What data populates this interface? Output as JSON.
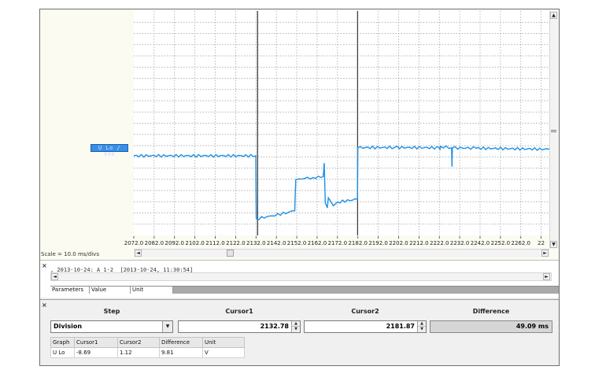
{
  "chart": {
    "channel_tag": "U Lo / ###",
    "scale_label": "Scale = 10.0 ms/divs",
    "trace_color": "#1e90e6",
    "cursor_line_color": "#404040",
    "x_ticks": [
      "2072.0",
      "2082.0",
      "2092.0",
      "2102.0",
      "2112.0",
      "2122.0",
      "2132.0",
      "2142.0",
      "2152.0",
      "2162.0",
      "2172.0",
      "2182.0",
      "2192.0",
      "2202.0",
      "2212.0",
      "2222.0",
      "2232.0",
      "2242.0",
      "2252.0",
      "2262.0",
      "22"
    ],
    "x_range": [
      2072.0,
      2276.0
    ],
    "cursor1_x": 2132.78,
    "cursor2_x": 2181.87,
    "trace": {
      "x": [
        2072,
        2131.9,
        2132.1,
        2140,
        2148,
        2151,
        2151.5,
        2153,
        2160,
        2165,
        2165.5,
        2166,
        2167,
        2167.5,
        2170,
        2172,
        2181.8,
        2182.0,
        2200,
        2222,
        2222.3,
        2222.6,
        2228,
        2228.2,
        2228.4,
        2240,
        2276
      ],
      "y": [
        0.0,
        0.0,
        -8.7,
        -8.3,
        -7.8,
        -7.6,
        -3.3,
        -3.2,
        -3.0,
        -2.9,
        -1.0,
        -6.5,
        -7.2,
        -5.8,
        -6.9,
        -6.4,
        -6.0,
        1.12,
        1.15,
        1.1,
        0.9,
        1.3,
        1.1,
        -1.5,
        1.1,
        1.05,
        0.9
      ],
      "y_range": [
        -11,
        20
      ]
    }
  },
  "info": {
    "log_line": ", 2013-10-24: A 1-2  [2013-10-24, 11:30:54]",
    "columns": [
      "Parameters",
      "Value",
      "Unit"
    ]
  },
  "cursor_panel": {
    "headers": {
      "step": "Step",
      "cursor1": "Cursor1",
      "cursor2": "Cursor2",
      "difference": "Difference"
    },
    "step_value": "Division",
    "cursor1_value": "2132.78",
    "cursor2_value": "2181.87",
    "difference_value": "49.09 ms",
    "table": {
      "columns": [
        "Graph",
        "Cursor1",
        "Cursor2",
        "Difference",
        "Unit"
      ],
      "rows": [
        {
          "graph": "U Lo",
          "cursor1": "-8.69",
          "cursor2": "1.12",
          "difference": "9.81",
          "unit": "V"
        }
      ]
    }
  },
  "icons": {
    "close": "×",
    "arrow_up": "▲",
    "arrow_down": "▼",
    "arrow_left": "◄",
    "arrow_right": "►",
    "dropdown": "▼"
  }
}
